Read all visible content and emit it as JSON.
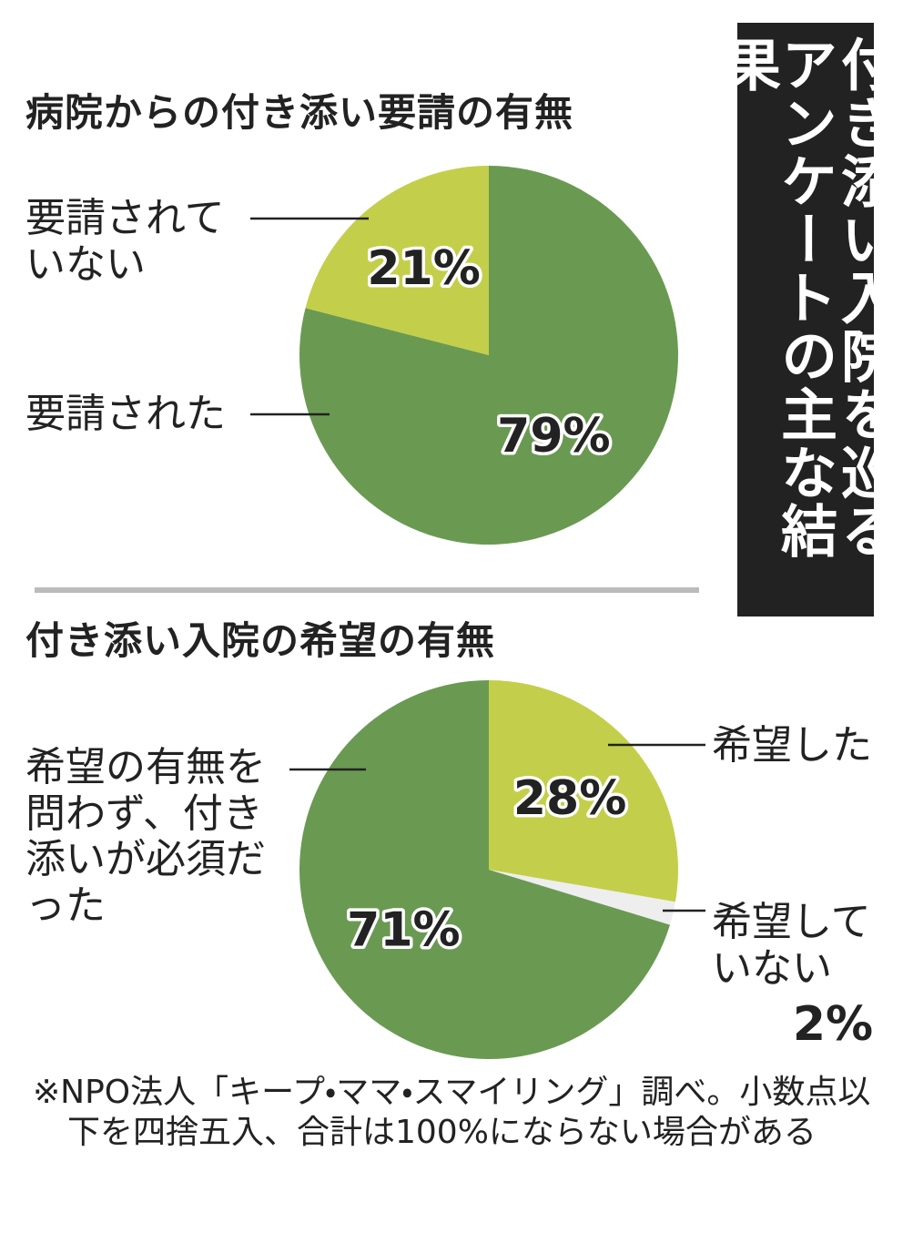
{
  "title": [
    "付き添い入院を巡る",
    "アンケートの主な結果"
  ],
  "chart_data": [
    {
      "type": "pie",
      "title": "病院からの付き添い要請の有無",
      "categories": [
        "要請された",
        "要請されていない"
      ],
      "values": [
        79,
        21
      ],
      "value_labels": [
        "79%",
        "21%"
      ],
      "colors": [
        "#6a9a52",
        "#c3cf4a"
      ]
    },
    {
      "type": "pie",
      "title": "付き添い入院の希望の有無",
      "categories": [
        "希望した",
        "希望していない",
        "希望の有無を問わず、付き添いが必須だった"
      ],
      "values": [
        28,
        2,
        71
      ],
      "value_labels": [
        "28%",
        "2%",
        "71%"
      ],
      "colors": [
        "#c3cf4a",
        "#eeeeee",
        "#6a9a52"
      ]
    }
  ],
  "note": "※NPO法人「キープ・ママ・スマイリング」調べ。小数点以下を四捨五入、合計は100%にならない場合がある"
}
